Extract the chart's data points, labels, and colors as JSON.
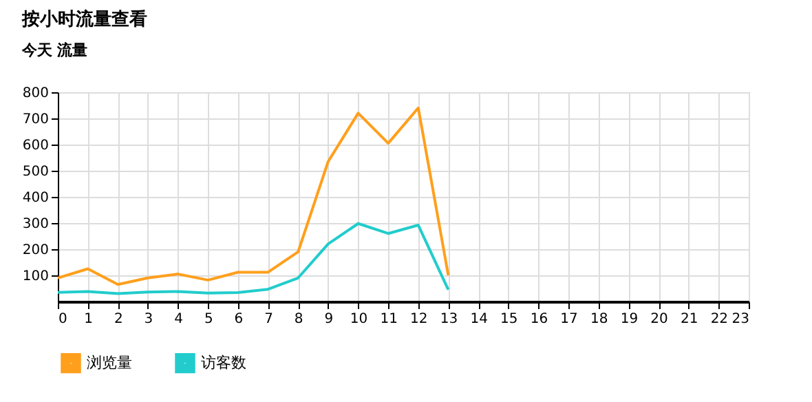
{
  "chart_data": {
    "type": "line",
    "title": "按小时流量查看",
    "subtitle": "今天 流量",
    "x": [
      0,
      1,
      2,
      3,
      4,
      5,
      6,
      7,
      8,
      9,
      10,
      11,
      12,
      13
    ],
    "series": [
      {
        "name": "浏览量",
        "color": "#ff9f1c",
        "values": [
          90,
          125,
          65,
          90,
          105,
          82,
          112,
          112,
          190,
          535,
          720,
          605,
          740,
          100
        ]
      },
      {
        "name": "访客数",
        "color": "#22cccc",
        "values": [
          35,
          38,
          30,
          36,
          38,
          32,
          34,
          47,
          90,
          220,
          298,
          260,
          292,
          45
        ]
      }
    ],
    "xlim": [
      0,
      23
    ],
    "xticks": [
      0,
      1,
      2,
      3,
      4,
      5,
      6,
      7,
      8,
      9,
      10,
      11,
      12,
      13,
      14,
      15,
      16,
      17,
      18,
      19,
      20,
      21,
      22,
      23
    ],
    "ylim": [
      0,
      800
    ],
    "yticks": [
      100,
      200,
      300,
      400,
      500,
      600,
      700,
      800
    ],
    "grid": true,
    "legend": "bottom left",
    "marker": "none",
    "line_style": "solid"
  }
}
